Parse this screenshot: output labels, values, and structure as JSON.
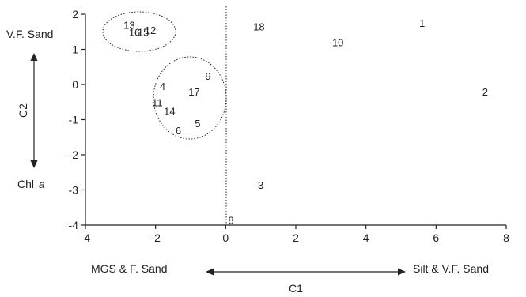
{
  "chart_data": {
    "type": "scatter",
    "xlabel": "C1",
    "ylabel": "C2",
    "xlim": [
      -4,
      8
    ],
    "ylim": [
      -4,
      2
    ],
    "x_ticks": [
      "-4",
      "-2",
      "0",
      "2",
      "4",
      "6",
      "8"
    ],
    "y_ticks": [
      "2",
      "1",
      "0",
      "-1",
      "-2",
      "-3",
      "-4"
    ],
    "grid": false,
    "points": [
      {
        "label": "1",
        "x": 5.6,
        "y": 1.75
      },
      {
        "label": "2",
        "x": 7.4,
        "y": -0.2
      },
      {
        "label": "3",
        "x": 1.0,
        "y": -2.85
      },
      {
        "label": "4",
        "x": -1.8,
        "y": -0.05
      },
      {
        "label": "5",
        "x": -0.8,
        "y": -1.1
      },
      {
        "label": "6",
        "x": -1.35,
        "y": -1.3
      },
      {
        "label": "8",
        "x": 0.15,
        "y": -3.85
      },
      {
        "label": "9",
        "x": -0.5,
        "y": 0.25
      },
      {
        "label": "10",
        "x": 3.2,
        "y": 1.2
      },
      {
        "label": "11",
        "x": -1.95,
        "y": -0.5
      },
      {
        "label": "12",
        "x": -2.15,
        "y": 1.55
      },
      {
        "label": "13",
        "x": -2.75,
        "y": 1.7
      },
      {
        "label": "14",
        "x": -1.6,
        "y": -0.75
      },
      {
        "label": "15",
        "x": -2.35,
        "y": 1.5
      },
      {
        "label": "16",
        "x": -2.6,
        "y": 1.5
      },
      {
        "label": "17",
        "x": -0.9,
        "y": -0.2
      },
      {
        "label": "18",
        "x": 0.95,
        "y": 1.65
      }
    ],
    "top_side_label": "V.F. Sand",
    "bottom_side_label_main": "Chl",
    "bottom_side_label_italic": "a",
    "left_end_label": "MGS & F. Sand",
    "right_end_label": "Silt & V.F. Sand"
  }
}
